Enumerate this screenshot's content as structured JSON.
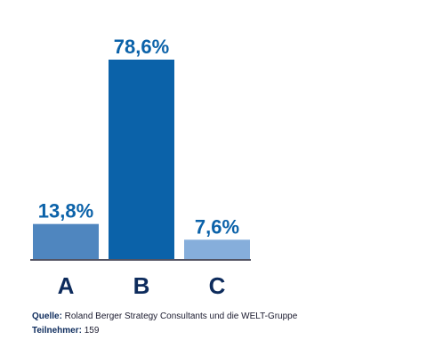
{
  "chart_data": {
    "type": "bar",
    "categories": [
      "A",
      "B",
      "C"
    ],
    "values": [
      13.8,
      78.6,
      7.6
    ],
    "value_labels": [
      "13,8%",
      "78,6%",
      "7,6%"
    ],
    "colors": [
      "#4f86bf",
      "#0b62a9",
      "#86aedb"
    ],
    "ylim": [
      0,
      78.6
    ],
    "grid": false,
    "legend": "none"
  },
  "footer": {
    "source_label": "Quelle:",
    "source_text": " Roland Berger Strategy Consultants und die WELT-Gruppe",
    "participants_label": "Teilnehmer:",
    "participants_text": " 159"
  },
  "colors": {
    "value_label": "#0b62a9",
    "category_label": "#0d2b5c",
    "baseline": "#1a1a2e"
  }
}
